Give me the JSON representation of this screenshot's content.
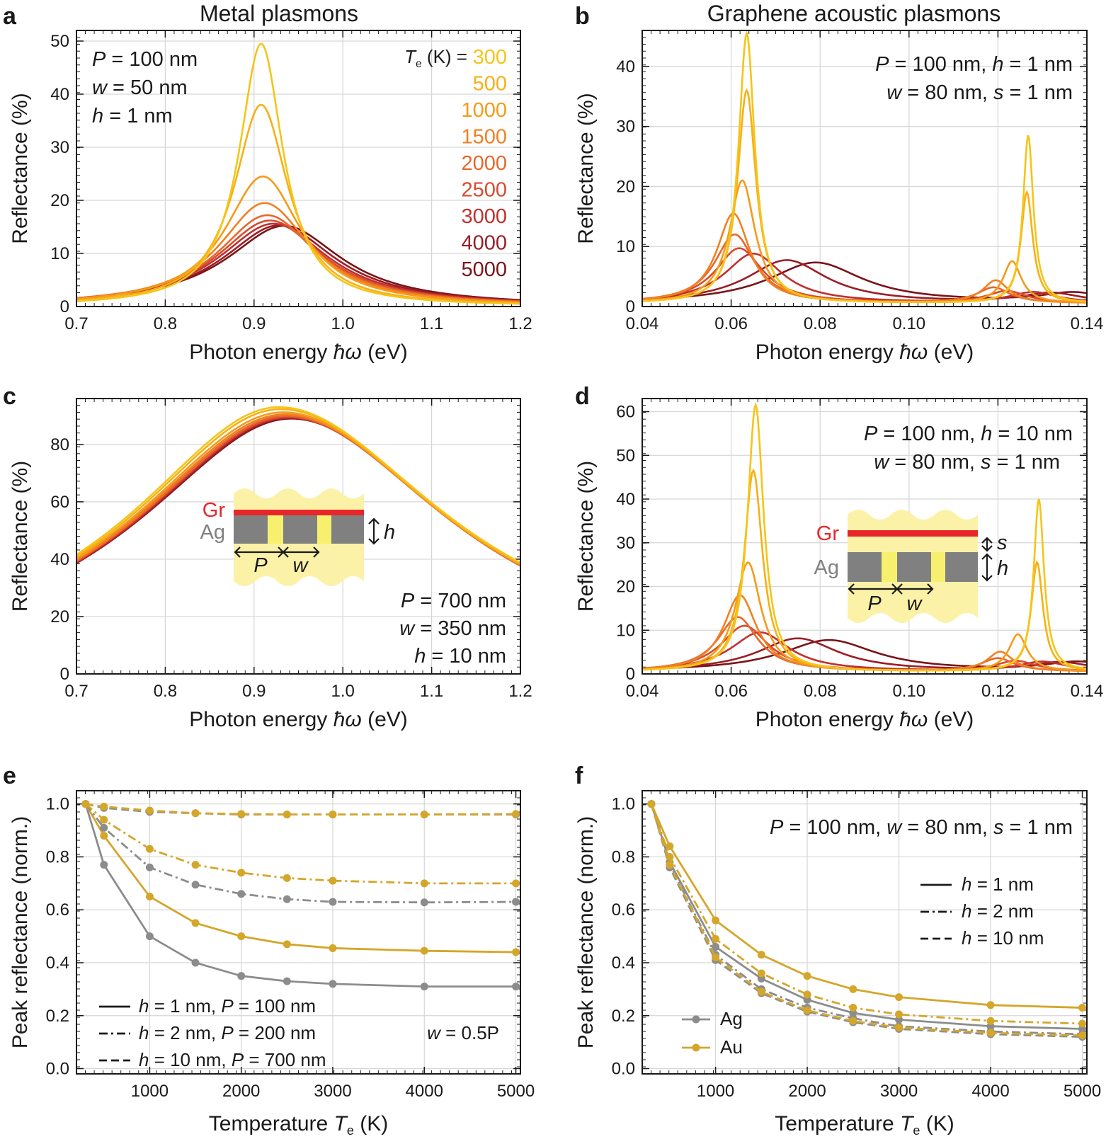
{
  "figure": {
    "column_titles": [
      "Metal plasmons",
      "Graphene acoustic plasmons"
    ],
    "temperature_legend_label": "T",
    "temperature_legend_sub": "e",
    "temperature_legend_unit": "(K) =",
    "inset_labels": {
      "gr": "Gr",
      "ag": "Ag",
      "P": "P",
      "w": "w",
      "h": "h",
      "s": "s"
    }
  },
  "chart_data": [
    {
      "panel": "a",
      "type": "line",
      "title": "Metal plasmons",
      "xlabel": "Photon energy ħω (eV)",
      "ylabel": "Reflectance (%)",
      "xlim": [
        0.7,
        1.2
      ],
      "ylim": [
        0,
        52
      ],
      "xticks": [
        "0.7",
        "0.8",
        "0.9",
        "1.0",
        "1.1",
        "1.2"
      ],
      "yticks": [
        "0",
        "10",
        "20",
        "30",
        "40",
        "50"
      ],
      "grid": true,
      "annotations": [
        "P = 100 nm",
        "w = 50 nm",
        "h = 1 nm"
      ],
      "series": [
        {
          "name": "300",
          "color": "#f5c518",
          "model": {
            "x0": 0.908,
            "peak": 49.5,
            "gl": 0.03,
            "gr": 0.03
          }
        },
        {
          "name": "500",
          "color": "#f7b015",
          "model": {
            "x0": 0.908,
            "peak": 38.0,
            "gl": 0.037,
            "gr": 0.037
          }
        },
        {
          "name": "1000",
          "color": "#f59a19",
          "model": {
            "x0": 0.91,
            "peak": 24.5,
            "gl": 0.052,
            "gr": 0.052
          }
        },
        {
          "name": "1500",
          "color": "#f08021",
          "model": {
            "x0": 0.912,
            "peak": 19.5,
            "gl": 0.062,
            "gr": 0.062
          }
        },
        {
          "name": "2000",
          "color": "#e8672a",
          "model": {
            "x0": 0.915,
            "peak": 17.2,
            "gl": 0.068,
            "gr": 0.068
          }
        },
        {
          "name": "2500",
          "color": "#d94a2e",
          "model": {
            "x0": 0.918,
            "peak": 16.2,
            "gl": 0.072,
            "gr": 0.072
          }
        },
        {
          "name": "3000",
          "color": "#c0302d",
          "model": {
            "x0": 0.922,
            "peak": 15.6,
            "gl": 0.075,
            "gr": 0.075
          }
        },
        {
          "name": "4000",
          "color": "#9c1d25",
          "model": {
            "x0": 0.928,
            "peak": 15.3,
            "gl": 0.077,
            "gr": 0.077
          }
        },
        {
          "name": "5000",
          "color": "#7a1418",
          "model": {
            "x0": 0.934,
            "peak": 15.2,
            "gl": 0.079,
            "gr": 0.079
          }
        }
      ]
    },
    {
      "panel": "b",
      "type": "line",
      "title": "Graphene acoustic plasmons",
      "xlabel": "Photon energy ħω (eV)",
      "ylabel": "Reflectance (%)",
      "xlim": [
        0.04,
        0.14
      ],
      "ylim": [
        0,
        46
      ],
      "xticks": [
        "0.04",
        "0.06",
        "0.08",
        "0.10",
        "0.12",
        "0.14"
      ],
      "yticks": [
        "0",
        "10",
        "20",
        "30",
        "40"
      ],
      "grid": true,
      "annotations": [
        "P = 100 nm,  h = 1 nm",
        "w = 80 nm,    s = 1 nm"
      ],
      "series": [
        {
          "name": "300",
          "color": "#f5c518",
          "peaks": [
            [
              0.0635,
              45.0,
              0.0022
            ],
            [
              0.1268,
              28.0,
              0.0014
            ]
          ],
          "base": 0.5
        },
        {
          "name": "500",
          "color": "#f7b015",
          "peaks": [
            [
              0.0635,
              35.5,
              0.0025
            ],
            [
              0.1265,
              18.5,
              0.0016
            ]
          ],
          "base": 0.5
        },
        {
          "name": "1000",
          "color": "#f59a19",
          "peaks": [
            [
              0.0625,
              20.5,
              0.0035
            ],
            [
              0.1232,
              7.0,
              0.0025
            ]
          ],
          "base": 0.5
        },
        {
          "name": "1500",
          "color": "#f08021",
          "peaks": [
            [
              0.0605,
              15.0,
              0.0045
            ],
            [
              0.1195,
              3.8,
              0.0035
            ]
          ],
          "base": 0.5
        },
        {
          "name": "2000",
          "color": "#e8672a",
          "peaks": [
            [
              0.0608,
              11.5,
              0.0055
            ],
            [
              0.119,
              2.6,
              0.0045
            ]
          ],
          "base": 0.5
        },
        {
          "name": "2500",
          "color": "#d94a2e",
          "peaks": [
            [
              0.0618,
              9.2,
              0.0065
            ],
            [
              0.122,
              2.0,
              0.0055
            ]
          ],
          "base": 0.5
        },
        {
          "name": "3000",
          "color": "#c0302d",
          "peaks": [
            [
              0.065,
              8.3,
              0.008
            ],
            [
              0.128,
              1.8,
              0.0065
            ]
          ],
          "base": 0.5
        },
        {
          "name": "4000",
          "color": "#9c1d25",
          "peaks": [
            [
              0.0725,
              7.2,
              0.011
            ],
            [
              0.132,
              1.6,
              0.008
            ]
          ],
          "base": 0.5
        },
        {
          "name": "5000",
          "color": "#7a1418",
          "peaks": [
            [
              0.079,
              6.8,
              0.013
            ],
            [
              0.137,
              1.6,
              0.009
            ]
          ],
          "base": 0.5
        }
      ]
    },
    {
      "panel": "c",
      "type": "line",
      "xlabel": "Photon energy ħω (eV)",
      "ylabel": "Reflectance (%)",
      "xlim": [
        0.7,
        1.2
      ],
      "ylim": [
        0,
        96
      ],
      "xticks": [
        "0.7",
        "0.8",
        "0.9",
        "1.0",
        "1.1",
        "1.2"
      ],
      "yticks": [
        "0",
        "20",
        "40",
        "60",
        "80"
      ],
      "grid": true,
      "annotations": [
        "P = 700 nm",
        "w = 350 nm",
        "h = 10 nm"
      ],
      "series": [
        {
          "name": "300",
          "color": "#f5c518",
          "model": {
            "x0": 0.928,
            "peak": 93.0,
            "gl": 0.205,
            "gr": 0.23
          }
        },
        {
          "name": "500",
          "color": "#f7b015",
          "model": {
            "x0": 0.93,
            "peak": 92.3,
            "gl": 0.205,
            "gr": 0.228
          }
        },
        {
          "name": "1000",
          "color": "#f59a19",
          "model": {
            "x0": 0.933,
            "peak": 91.2,
            "gl": 0.207,
            "gr": 0.226
          }
        },
        {
          "name": "1500",
          "color": "#f08021",
          "model": {
            "x0": 0.935,
            "peak": 90.5,
            "gl": 0.208,
            "gr": 0.225
          }
        },
        {
          "name": "2000",
          "color": "#e8672a",
          "model": {
            "x0": 0.937,
            "peak": 90.0,
            "gl": 0.209,
            "gr": 0.224
          }
        },
        {
          "name": "2500",
          "color": "#d94a2e",
          "model": {
            "x0": 0.938,
            "peak": 89.6,
            "gl": 0.21,
            "gr": 0.224
          }
        },
        {
          "name": "3000",
          "color": "#c0302d",
          "model": {
            "x0": 0.939,
            "peak": 89.4,
            "gl": 0.21,
            "gr": 0.223
          }
        },
        {
          "name": "4000",
          "color": "#9c1d25",
          "model": {
            "x0": 0.941,
            "peak": 89.2,
            "gl": 0.211,
            "gr": 0.223
          }
        },
        {
          "name": "5000",
          "color": "#7a1418",
          "model": {
            "x0": 0.942,
            "peak": 89.0,
            "gl": 0.212,
            "gr": 0.223
          }
        }
      ]
    },
    {
      "panel": "d",
      "type": "line",
      "xlabel": "Photon energy ħω (eV)",
      "ylabel": "Reflectance (%)",
      "xlim": [
        0.04,
        0.14
      ],
      "ylim": [
        0,
        63
      ],
      "xticks": [
        "0.04",
        "0.06",
        "0.08",
        "0.10",
        "0.12",
        "0.14"
      ],
      "yticks": [
        "0",
        "10",
        "20",
        "30",
        "40",
        "50",
        "60"
      ],
      "grid": true,
      "annotations": [
        "P = 100 nm,  h = 10 nm",
        "w = 80 nm,    s = 1 nm"
      ],
      "series": [
        {
          "name": "300",
          "color": "#f5c518",
          "peaks": [
            [
              0.0655,
              61.0,
              0.0022
            ],
            [
              0.1292,
              39.5,
              0.0014
            ]
          ],
          "base": 0.5
        },
        {
          "name": "500",
          "color": "#f7b015",
          "peaks": [
            [
              0.065,
              46.0,
              0.0025
            ],
            [
              0.1288,
              25.0,
              0.0016
            ]
          ],
          "base": 0.5
        },
        {
          "name": "1000",
          "color": "#f59a19",
          "peaks": [
            [
              0.0638,
              25.0,
              0.0035
            ],
            [
              0.1245,
              8.5,
              0.0025
            ]
          ],
          "base": 0.5
        },
        {
          "name": "1500",
          "color": "#f08021",
          "peaks": [
            [
              0.062,
              17.5,
              0.0045
            ],
            [
              0.1205,
              4.5,
              0.0035
            ]
          ],
          "base": 0.5
        },
        {
          "name": "2000",
          "color": "#e8672a",
          "peaks": [
            [
              0.0615,
              12.5,
              0.0055
            ],
            [
              0.12,
              3.0,
              0.0045
            ]
          ],
          "base": 0.5
        },
        {
          "name": "2500",
          "color": "#d94a2e",
          "peaks": [
            [
              0.063,
              10.5,
              0.0065
            ],
            [
              0.124,
              2.4,
              0.0055
            ]
          ],
          "base": 0.5
        },
        {
          "name": "3000",
          "color": "#c0302d",
          "peaks": [
            [
              0.0665,
              9.0,
              0.008
            ],
            [
              0.13,
              2.2,
              0.0065
            ]
          ],
          "base": 0.5
        },
        {
          "name": "4000",
          "color": "#9c1d25",
          "peaks": [
            [
              0.075,
              7.6,
              0.011
            ],
            [
              0.134,
              2.0,
              0.008
            ]
          ],
          "base": 0.5
        },
        {
          "name": "5000",
          "color": "#7a1418",
          "peaks": [
            [
              0.082,
              7.2,
              0.013
            ],
            [
              0.138,
              2.0,
              0.009
            ]
          ],
          "base": 0.5
        }
      ]
    },
    {
      "panel": "e",
      "type": "line",
      "xlabel": "Temperature T",
      "xlabel_sub": "e",
      "xlabel_unit": "(K)",
      "ylabel": "Peak reflectance (norm.)",
      "xlim": [
        200,
        5050
      ],
      "ylim": [
        -0.02,
        1.05
      ],
      "xticks": [
        "1000",
        "2000",
        "3000",
        "4000",
        "5000"
      ],
      "yticks": [
        "0.0",
        "0.2",
        "0.4",
        "0.6",
        "0.8",
        "1.0"
      ],
      "grid": true,
      "x": [
        300,
        500,
        1000,
        1500,
        2000,
        2500,
        3000,
        4000,
        5000
      ],
      "annotations": [
        "w = 0.5P"
      ],
      "legend": [
        "h = 1 nm,    P = 100 nm",
        "h = 2 nm,    P = 200 nm",
        "h = 10 nm,  P = 700 nm"
      ],
      "series": [
        {
          "metal": "Ag",
          "style": "solid",
          "color": "#8c8c8c",
          "values": [
            1.0,
            0.77,
            0.5,
            0.4,
            0.35,
            0.33,
            0.32,
            0.31,
            0.31
          ]
        },
        {
          "metal": "Au",
          "style": "solid",
          "color": "#d4a62a",
          "values": [
            1.0,
            0.88,
            0.65,
            0.55,
            0.5,
            0.47,
            0.455,
            0.445,
            0.44
          ]
        },
        {
          "metal": "Ag",
          "style": "dashdot",
          "color": "#8c8c8c",
          "values": [
            1.0,
            0.91,
            0.76,
            0.695,
            0.66,
            0.64,
            0.63,
            0.628,
            0.63
          ]
        },
        {
          "metal": "Au",
          "style": "dashdot",
          "color": "#d4a62a",
          "values": [
            1.0,
            0.94,
            0.83,
            0.77,
            0.74,
            0.72,
            0.71,
            0.7,
            0.7
          ]
        },
        {
          "metal": "Ag",
          "style": "dashed",
          "color": "#8c8c8c",
          "values": [
            1.0,
            0.985,
            0.97,
            0.965,
            0.96,
            0.96,
            0.96,
            0.96,
            0.96
          ]
        },
        {
          "metal": "Au",
          "style": "dashed",
          "color": "#d4a62a",
          "values": [
            1.0,
            0.99,
            0.975,
            0.965,
            0.962,
            0.96,
            0.96,
            0.96,
            0.962
          ]
        }
      ]
    },
    {
      "panel": "f",
      "type": "line",
      "xlabel": "Temperature T",
      "xlabel_sub": "e",
      "xlabel_unit": "(K)",
      "ylabel": "Peak reflectance (norm.)",
      "xlim": [
        200,
        5050
      ],
      "ylim": [
        -0.02,
        1.05
      ],
      "xticks": [
        "1000",
        "2000",
        "3000",
        "4000",
        "5000"
      ],
      "yticks": [
        "0.0",
        "0.2",
        "0.4",
        "0.6",
        "0.8",
        "1.0"
      ],
      "grid": true,
      "x": [
        300,
        500,
        1000,
        1500,
        2000,
        2500,
        3000,
        4000,
        5000
      ],
      "annotations": [
        "P = 100 nm,  w = 80 nm,  s = 1 nm"
      ],
      "legend": [
        "h = 1 nm",
        "h = 2 nm",
        "h = 10 nm"
      ],
      "metal_legend": [
        "Ag",
        "Au"
      ],
      "series": [
        {
          "metal": "Ag",
          "style": "solid",
          "color": "#8c8c8c",
          "values": [
            1.0,
            0.78,
            0.46,
            0.34,
            0.26,
            0.21,
            0.185,
            0.16,
            0.15
          ]
        },
        {
          "metal": "Au",
          "style": "solid",
          "color": "#d4a62a",
          "values": [
            1.0,
            0.84,
            0.56,
            0.43,
            0.35,
            0.3,
            0.27,
            0.24,
            0.23
          ]
        },
        {
          "metal": "Ag",
          "style": "dashdot",
          "color": "#8c8c8c",
          "values": [
            1.0,
            0.77,
            0.43,
            0.3,
            0.23,
            0.19,
            0.16,
            0.14,
            0.13
          ]
        },
        {
          "metal": "Au",
          "style": "dashdot",
          "color": "#d4a62a",
          "values": [
            1.0,
            0.8,
            0.49,
            0.36,
            0.28,
            0.23,
            0.205,
            0.18,
            0.17
          ]
        },
        {
          "metal": "Ag",
          "style": "dashed",
          "color": "#8c8c8c",
          "values": [
            1.0,
            0.76,
            0.41,
            0.285,
            0.215,
            0.175,
            0.15,
            0.13,
            0.12
          ]
        },
        {
          "metal": "Au",
          "style": "dashed",
          "color": "#d4a62a",
          "values": [
            1.0,
            0.77,
            0.42,
            0.29,
            0.22,
            0.18,
            0.155,
            0.135,
            0.125
          ]
        }
      ]
    }
  ]
}
